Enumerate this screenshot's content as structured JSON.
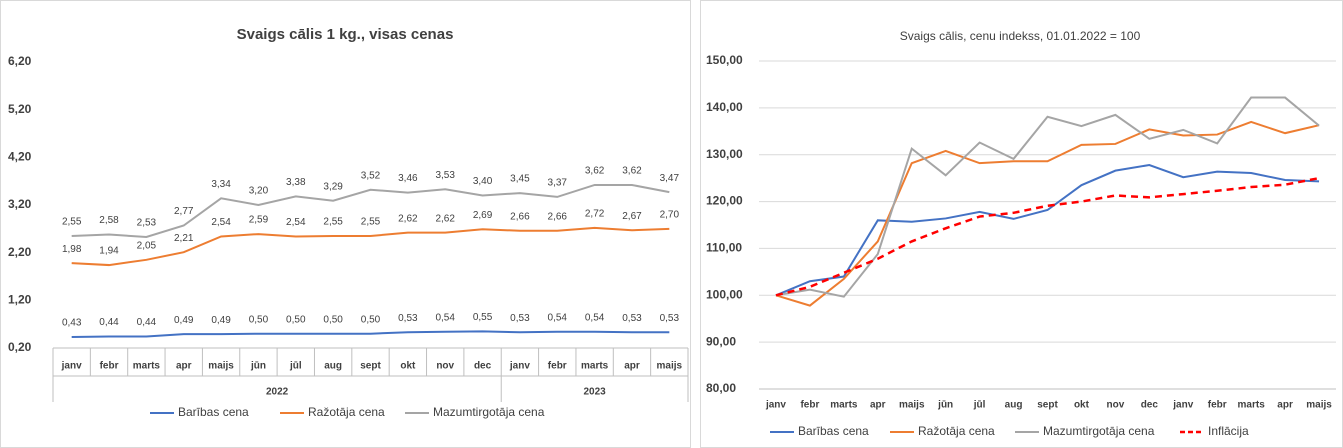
{
  "chart_data": [
    {
      "type": "line",
      "title": "Svaigs cālis 1 kg., visas cenas",
      "categories": [
        "janv",
        "febr",
        "marts",
        "apr",
        "maijs",
        "jūn",
        "jūl",
        "aug",
        "sept",
        "okt",
        "nov",
        "dec",
        "janv",
        "febr",
        "marts",
        "apr",
        "maijs"
      ],
      "year_groups": [
        "2022",
        "2023"
      ],
      "ylim": [
        0.2,
        6.2
      ],
      "yticks": [
        {
          "value": 0.2,
          "label": "0,20"
        },
        {
          "value": 1.2,
          "label": "1,20"
        },
        {
          "value": 2.2,
          "label": "2,20"
        },
        {
          "value": 3.2,
          "label": "3,20"
        },
        {
          "value": 4.2,
          "label": "4,20"
        },
        {
          "value": 5.2,
          "label": "5,20"
        },
        {
          "value": 6.2,
          "label": "6,20"
        }
      ],
      "grid": false,
      "series": [
        {
          "name": "Barības cena",
          "color": "#4472c4",
          "values": [
            0.43,
            0.44,
            0.44,
            0.49,
            0.49,
            0.5,
            0.5,
            0.5,
            0.5,
            0.53,
            0.54,
            0.55,
            0.53,
            0.54,
            0.54,
            0.53,
            0.53
          ],
          "value_labels": [
            "0,43",
            "0,44",
            "0,44",
            "0,49",
            "0,49",
            "0,50",
            "0,50",
            "0,50",
            "0,50",
            "0,53",
            "0,54",
            "0,55",
            "0,53",
            "0,54",
            "0,54",
            "0,53",
            "0,53"
          ]
        },
        {
          "name": "Ražotāja cena",
          "color": "#ed7d31",
          "values": [
            1.98,
            1.94,
            2.05,
            2.21,
            2.54,
            2.59,
            2.54,
            2.55,
            2.55,
            2.62,
            2.62,
            2.69,
            2.66,
            2.66,
            2.72,
            2.67,
            2.7
          ],
          "value_labels": [
            "1,98",
            "1,94",
            "2,05",
            "2,21",
            "2,54",
            "2,59",
            "2,54",
            "2,55",
            "2,55",
            "2,62",
            "2,62",
            "2,69",
            "2,66",
            "2,66",
            "2,72",
            "2,67",
            "2,70"
          ]
        },
        {
          "name": "Mazumtirgotāja cena",
          "color": "#a5a5a5",
          "values": [
            2.55,
            2.58,
            2.53,
            2.77,
            3.34,
            3.2,
            3.38,
            3.29,
            3.52,
            3.46,
            3.53,
            3.4,
            3.45,
            3.37,
            3.62,
            3.62,
            3.47
          ],
          "value_labels": [
            "2,55",
            "2,58",
            "2,53",
            "2,77",
            "3,34",
            "3,20",
            "3,38",
            "3,29",
            "3,52",
            "3,46",
            "3,53",
            "3,40",
            "3,45",
            "3,37",
            "3,62",
            "3,62",
            "3,47"
          ]
        }
      ]
    },
    {
      "type": "line",
      "title": "Svaigs cālis, cenu indekss, 01.01.2022 = 100",
      "categories": [
        "janv",
        "febr",
        "marts",
        "apr",
        "maijs",
        "jūn",
        "jūl",
        "aug",
        "sept",
        "okt",
        "nov",
        "dec",
        "janv",
        "febr",
        "marts",
        "apr",
        "maijs"
      ],
      "ylim": [
        80,
        150
      ],
      "yticks": [
        {
          "value": 80,
          "label": "80,00"
        },
        {
          "value": 90,
          "label": "90,00"
        },
        {
          "value": 100,
          "label": "100,00"
        },
        {
          "value": 110,
          "label": "110,00"
        },
        {
          "value": 120,
          "label": "120,00"
        },
        {
          "value": 130,
          "label": "130,00"
        },
        {
          "value": 140,
          "label": "140,00"
        },
        {
          "value": 150,
          "label": "150,00"
        }
      ],
      "grid": true,
      "series": [
        {
          "name": "Barības cena",
          "color": "#4472c4",
          "values": [
            100,
            103,
            104,
            116,
            115.7,
            116.4,
            117.8,
            116.3,
            118.2,
            123.5,
            126.6,
            127.8,
            125.2,
            126.4,
            126.1,
            124.6,
            124.3
          ]
        },
        {
          "name": "Ražotāja cena",
          "color": "#ed7d31",
          "values": [
            100,
            97.8,
            103.5,
            111.5,
            128.2,
            130.8,
            128.2,
            128.6,
            128.6,
            132.1,
            132.3,
            135.4,
            134.1,
            134.3,
            137,
            134.6,
            136.3
          ]
        },
        {
          "name": "Mazumtirgotāja cena",
          "color": "#a5a5a5",
          "values": [
            100,
            101.2,
            99.7,
            108.8,
            131.3,
            125.6,
            132.6,
            129.1,
            138.1,
            136.1,
            138.5,
            133.4,
            135.3,
            132.4,
            142.2,
            142.2,
            136.2
          ]
        },
        {
          "name": "Inflācija",
          "color": "#ff0000",
          "dashed": true,
          "values": [
            100,
            101.8,
            104.8,
            107.8,
            111.5,
            114.3,
            116.8,
            117.6,
            119.1,
            120.0,
            121.3,
            120.9,
            121.6,
            122.3,
            123.1,
            123.6,
            125.0
          ]
        }
      ]
    }
  ]
}
